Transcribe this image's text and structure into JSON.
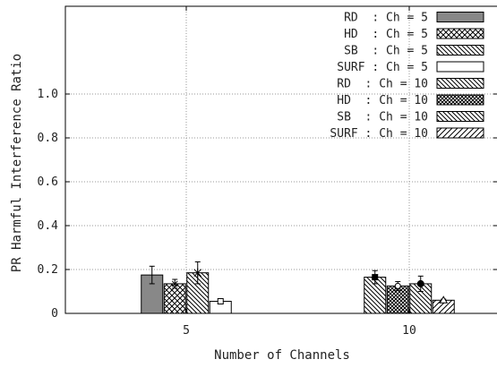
{
  "chart_data": {
    "type": "bar",
    "xlabel": "Number of Channels",
    "ylabel": "PR Harmful Interference Ratio",
    "categories": [
      "5",
      "10"
    ],
    "ylim": [
      0,
      1.4
    ],
    "yticks": [
      "0",
      "0.2",
      "0.4",
      "0.6",
      "0.8",
      "1.0"
    ],
    "grid": true,
    "legend_position": "top-right",
    "series": [
      {
        "name": "RD  : Ch = 5",
        "pattern": "solid-gray",
        "marker": "none",
        "values": [
          0.175,
          null
        ],
        "errors": [
          0.04,
          null
        ]
      },
      {
        "name": "HD  : Ch = 5",
        "pattern": "crosshatch",
        "marker": "x",
        "values": [
          0.135,
          null
        ],
        "errors": [
          0.02,
          null
        ]
      },
      {
        "name": "SB  : Ch = 5",
        "pattern": "diag-back",
        "marker": "star",
        "values": [
          0.185,
          null
        ],
        "errors": [
          0.05,
          null
        ]
      },
      {
        "name": "SURF : Ch = 5",
        "pattern": "white",
        "marker": "square",
        "values": [
          0.055,
          null
        ],
        "errors": [
          0.005,
          null
        ]
      },
      {
        "name": "RD  : Ch = 10",
        "pattern": "diag-back",
        "marker": "square-filled",
        "values": [
          null,
          0.165
        ],
        "errors": [
          null,
          0.03
        ]
      },
      {
        "name": "HD  : Ch = 10",
        "pattern": "dense-cross",
        "marker": "circle",
        "values": [
          null,
          0.125
        ],
        "errors": [
          null,
          0.02
        ]
      },
      {
        "name": "SB  : Ch = 10",
        "pattern": "diag-back",
        "marker": "circle-filled",
        "values": [
          null,
          0.135
        ],
        "errors": [
          null,
          0.035
        ]
      },
      {
        "name": "SURF : Ch = 10",
        "pattern": "diag-fwd",
        "marker": "triangle",
        "values": [
          null,
          0.06
        ],
        "errors": [
          null,
          0.005
        ]
      }
    ],
    "colors": {
      "axis": "#000000",
      "grid": "#999999",
      "rd5_fill": "#888888"
    }
  }
}
